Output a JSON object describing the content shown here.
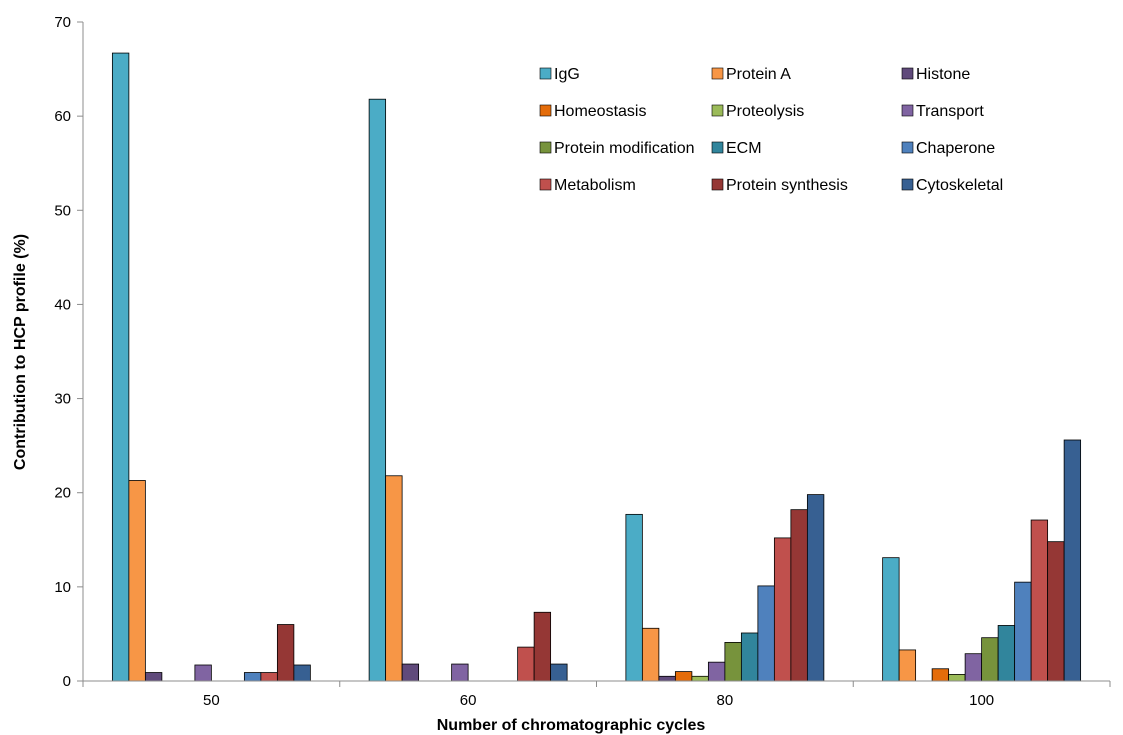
{
  "chart_data": {
    "type": "bar",
    "title": "",
    "xlabel": "Number of chromatographic cycles",
    "ylabel": "Contribution to HCP profile (%)",
    "ylim": [
      0,
      70
    ],
    "yticks": [
      0,
      10,
      20,
      30,
      40,
      50,
      60,
      70
    ],
    "grid": false,
    "legend_position": "top-right",
    "categories": [
      "50",
      "60",
      "80",
      "100"
    ],
    "series": [
      {
        "name": "IgG",
        "color": "#4BACC6",
        "values": [
          66.7,
          61.8,
          17.7,
          13.1
        ]
      },
      {
        "name": "Protein A",
        "color": "#F79646",
        "values": [
          21.3,
          21.8,
          5.6,
          3.3
        ]
      },
      {
        "name": "Histone",
        "color": "#604A7B",
        "values": [
          0.9,
          1.8,
          0.5,
          0
        ]
      },
      {
        "name": "Homeostasis",
        "color": "#E46C0A",
        "values": [
          0,
          0,
          1.0,
          1.3
        ]
      },
      {
        "name": "Proteolysis",
        "color": "#9BBB59",
        "values": [
          0,
          0,
          0.5,
          0.7
        ]
      },
      {
        "name": "Transport",
        "color": "#8064A2",
        "values": [
          1.7,
          1.8,
          2.0,
          2.9
        ]
      },
      {
        "name": "Protein modification",
        "color": "#77933C",
        "values": [
          0,
          0,
          4.1,
          4.6
        ]
      },
      {
        "name": "ECM",
        "color": "#31859C",
        "values": [
          0,
          0,
          5.1,
          5.9
        ]
      },
      {
        "name": "Chaperone",
        "color": "#4F81BD",
        "values": [
          0.9,
          0,
          10.1,
          10.5
        ]
      },
      {
        "name": "Metabolism",
        "color": "#C0504D",
        "values": [
          0.9,
          3.6,
          15.2,
          17.1
        ]
      },
      {
        "name": "Protein synthesis",
        "color": "#953735",
        "values": [
          6.0,
          7.3,
          18.2,
          14.8
        ]
      },
      {
        "name": "Cytoskeletal",
        "color": "#376092",
        "values": [
          1.7,
          1.8,
          19.8,
          25.6
        ]
      }
    ]
  }
}
